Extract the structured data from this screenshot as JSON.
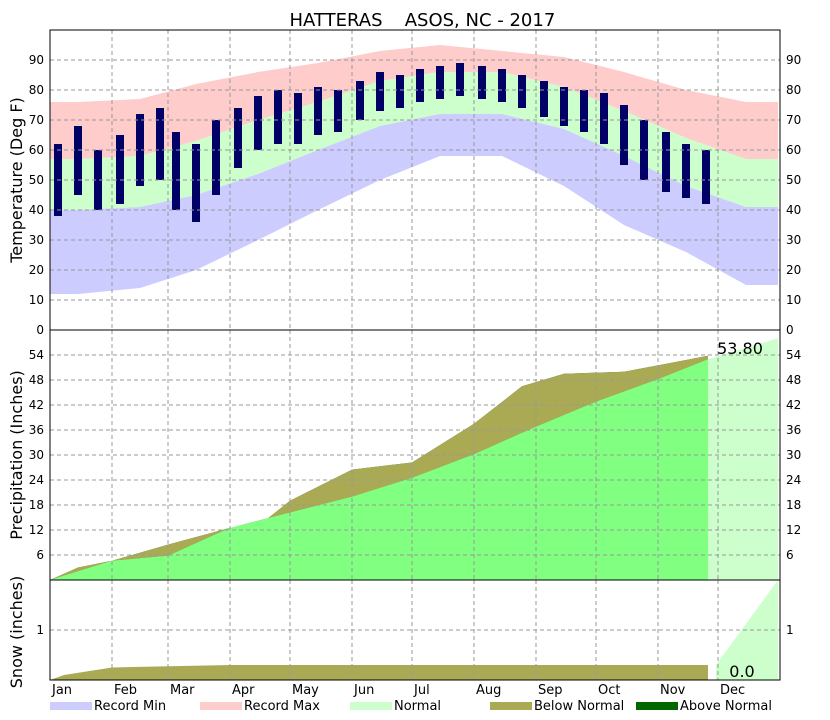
{
  "chart_data": [
    {
      "type": "area",
      "panel": "temperature",
      "title_left": "HATTERAS",
      "title_right": "ASOS, NC - 2017",
      "ylabel": "Temperature (Deg F)",
      "ylim": [
        0,
        100
      ],
      "yticks": [
        "0",
        "10",
        "20",
        "30",
        "40",
        "50",
        "60",
        "70",
        "80",
        "90"
      ],
      "grid": true,
      "x_month_starts": [
        "2017-01-01",
        "2017-02-01",
        "2017-03-01",
        "2017-04-01",
        "2017-05-01",
        "2017-06-01",
        "2017-07-01",
        "2017-08-01",
        "2017-09-01",
        "2017-10-01",
        "2017-11-01",
        "2017-12-01"
      ],
      "normal_high": [
        {
          "date": "2017-01-15",
          "value": 57
        },
        {
          "date": "2017-02-15",
          "value": 58
        },
        {
          "date": "2017-03-15",
          "value": 63
        },
        {
          "date": "2017-04-15",
          "value": 70
        },
        {
          "date": "2017-05-15",
          "value": 76
        },
        {
          "date": "2017-06-15",
          "value": 83
        },
        {
          "date": "2017-07-15",
          "value": 86
        },
        {
          "date": "2017-08-15",
          "value": 86
        },
        {
          "date": "2017-09-15",
          "value": 81
        },
        {
          "date": "2017-10-15",
          "value": 73
        },
        {
          "date": "2017-11-15",
          "value": 64
        },
        {
          "date": "2017-12-15",
          "value": 57
        }
      ],
      "normal_low": [
        {
          "date": "2017-01-15",
          "value": 40
        },
        {
          "date": "2017-02-15",
          "value": 41
        },
        {
          "date": "2017-03-15",
          "value": 45
        },
        {
          "date": "2017-04-15",
          "value": 52
        },
        {
          "date": "2017-05-15",
          "value": 60
        },
        {
          "date": "2017-06-15",
          "value": 68
        },
        {
          "date": "2017-07-15",
          "value": 72
        },
        {
          "date": "2017-08-15",
          "value": 72
        },
        {
          "date": "2017-09-15",
          "value": 67
        },
        {
          "date": "2017-10-15",
          "value": 58
        },
        {
          "date": "2017-11-15",
          "value": 48
        },
        {
          "date": "2017-12-15",
          "value": 41
        }
      ],
      "record_max": [
        {
          "date": "2017-01-15",
          "value": 76
        },
        {
          "date": "2017-02-15",
          "value": 77
        },
        {
          "date": "2017-03-15",
          "value": 82
        },
        {
          "date": "2017-04-15",
          "value": 86
        },
        {
          "date": "2017-05-15",
          "value": 89
        },
        {
          "date": "2017-06-15",
          "value": 93
        },
        {
          "date": "2017-07-15",
          "value": 95
        },
        {
          "date": "2017-08-15",
          "value": 93
        },
        {
          "date": "2017-09-15",
          "value": 91
        },
        {
          "date": "2017-10-15",
          "value": 86
        },
        {
          "date": "2017-11-15",
          "value": 80
        },
        {
          "date": "2017-12-15",
          "value": 76
        }
      ],
      "record_min": [
        {
          "date": "2017-01-15",
          "value": 12
        },
        {
          "date": "2017-02-15",
          "value": 14
        },
        {
          "date": "2017-03-15",
          "value": 20
        },
        {
          "date": "2017-04-15",
          "value": 30
        },
        {
          "date": "2017-05-15",
          "value": 40
        },
        {
          "date": "2017-06-15",
          "value": 50
        },
        {
          "date": "2017-07-15",
          "value": 58
        },
        {
          "date": "2017-08-15",
          "value": 58
        },
        {
          "date": "2017-09-15",
          "value": 48
        },
        {
          "date": "2017-10-15",
          "value": 35
        },
        {
          "date": "2017-11-15",
          "value": 26
        },
        {
          "date": "2017-12-15",
          "value": 15
        }
      ],
      "observed_high": [
        {
          "date": "2017-01-05",
          "value": 62
        },
        {
          "date": "2017-01-15",
          "value": 68
        },
        {
          "date": "2017-01-25",
          "value": 60
        },
        {
          "date": "2017-02-05",
          "value": 65
        },
        {
          "date": "2017-02-15",
          "value": 72
        },
        {
          "date": "2017-02-25",
          "value": 74
        },
        {
          "date": "2017-03-05",
          "value": 66
        },
        {
          "date": "2017-03-15",
          "value": 62
        },
        {
          "date": "2017-03-25",
          "value": 70
        },
        {
          "date": "2017-04-05",
          "value": 74
        },
        {
          "date": "2017-04-15",
          "value": 78
        },
        {
          "date": "2017-04-25",
          "value": 80
        },
        {
          "date": "2017-05-05",
          "value": 79
        },
        {
          "date": "2017-05-15",
          "value": 81
        },
        {
          "date": "2017-05-25",
          "value": 80
        },
        {
          "date": "2017-06-05",
          "value": 83
        },
        {
          "date": "2017-06-15",
          "value": 86
        },
        {
          "date": "2017-06-25",
          "value": 85
        },
        {
          "date": "2017-07-05",
          "value": 87
        },
        {
          "date": "2017-07-15",
          "value": 88
        },
        {
          "date": "2017-07-25",
          "value": 89
        },
        {
          "date": "2017-08-05",
          "value": 88
        },
        {
          "date": "2017-08-15",
          "value": 87
        },
        {
          "date": "2017-08-25",
          "value": 85
        },
        {
          "date": "2017-09-05",
          "value": 83
        },
        {
          "date": "2017-09-15",
          "value": 81
        },
        {
          "date": "2017-09-25",
          "value": 80
        },
        {
          "date": "2017-10-05",
          "value": 79
        },
        {
          "date": "2017-10-15",
          "value": 75
        },
        {
          "date": "2017-10-25",
          "value": 70
        },
        {
          "date": "2017-11-05",
          "value": 66
        },
        {
          "date": "2017-11-15",
          "value": 62
        },
        {
          "date": "2017-11-25",
          "value": 60
        }
      ],
      "observed_low": [
        {
          "date": "2017-01-05",
          "value": 38
        },
        {
          "date": "2017-01-15",
          "value": 45
        },
        {
          "date": "2017-01-25",
          "value": 40
        },
        {
          "date": "2017-02-05",
          "value": 42
        },
        {
          "date": "2017-02-15",
          "value": 48
        },
        {
          "date": "2017-02-25",
          "value": 50
        },
        {
          "date": "2017-03-05",
          "value": 40
        },
        {
          "date": "2017-03-15",
          "value": 36
        },
        {
          "date": "2017-03-25",
          "value": 45
        },
        {
          "date": "2017-04-05",
          "value": 54
        },
        {
          "date": "2017-04-15",
          "value": 60
        },
        {
          "date": "2017-04-25",
          "value": 62
        },
        {
          "date": "2017-05-05",
          "value": 62
        },
        {
          "date": "2017-05-15",
          "value": 65
        },
        {
          "date": "2017-05-25",
          "value": 66
        },
        {
          "date": "2017-06-05",
          "value": 70
        },
        {
          "date": "2017-06-15",
          "value": 73
        },
        {
          "date": "2017-06-25",
          "value": 74
        },
        {
          "date": "2017-07-05",
          "value": 76
        },
        {
          "date": "2017-07-15",
          "value": 77
        },
        {
          "date": "2017-07-25",
          "value": 78
        },
        {
          "date": "2017-08-05",
          "value": 77
        },
        {
          "date": "2017-08-15",
          "value": 76
        },
        {
          "date": "2017-08-25",
          "value": 74
        },
        {
          "date": "2017-09-05",
          "value": 71
        },
        {
          "date": "2017-09-15",
          "value": 68
        },
        {
          "date": "2017-09-25",
          "value": 66
        },
        {
          "date": "2017-10-05",
          "value": 62
        },
        {
          "date": "2017-10-15",
          "value": 55
        },
        {
          "date": "2017-10-25",
          "value": 50
        },
        {
          "date": "2017-11-05",
          "value": 46
        },
        {
          "date": "2017-11-15",
          "value": 44
        },
        {
          "date": "2017-11-25",
          "value": 42
        }
      ],
      "colors": {
        "record_min": "#ccccff",
        "record_max": "#ffcccc",
        "normal": "#ccffcc",
        "observed": "#000066"
      }
    },
    {
      "type": "area",
      "panel": "precipitation",
      "ylabel": "Precipitation (Inches)",
      "ylim": [
        0,
        60
      ],
      "yticks": [
        "6",
        "12",
        "18",
        "24",
        "30",
        "36",
        "42",
        "48",
        "54"
      ],
      "grid": true,
      "annotation": "53.80",
      "normal_cumulative": [
        {
          "date": "2017-01-01",
          "value": 0
        },
        {
          "date": "2017-02-01",
          "value": 4.6
        },
        {
          "date": "2017-03-01",
          "value": 8.5
        },
        {
          "date": "2017-04-01",
          "value": 12.5
        },
        {
          "date": "2017-05-01",
          "value": 16.2
        },
        {
          "date": "2017-06-01",
          "value": 20.0
        },
        {
          "date": "2017-07-01",
          "value": 24.5
        },
        {
          "date": "2017-08-01",
          "value": 30.2
        },
        {
          "date": "2017-09-01",
          "value": 36.8
        },
        {
          "date": "2017-10-01",
          "value": 42.8
        },
        {
          "date": "2017-11-01",
          "value": 48.2
        },
        {
          "date": "2017-11-26",
          "value": 53.0
        },
        {
          "date": "2017-12-31",
          "value": 58.0
        }
      ],
      "observed_cumulative": [
        {
          "date": "2017-01-01",
          "value": 0
        },
        {
          "date": "2017-01-15",
          "value": 3.0
        },
        {
          "date": "2017-02-01",
          "value": 4.6
        },
        {
          "date": "2017-02-15",
          "value": 5.2
        },
        {
          "date": "2017-03-01",
          "value": 5.8
        },
        {
          "date": "2017-04-01",
          "value": 12.5
        },
        {
          "date": "2017-04-20",
          "value": 14.8
        },
        {
          "date": "2017-05-01",
          "value": 19.0
        },
        {
          "date": "2017-06-01",
          "value": 26.5
        },
        {
          "date": "2017-07-01",
          "value": 28.2
        },
        {
          "date": "2017-08-01",
          "value": 37.5
        },
        {
          "date": "2017-08-25",
          "value": 46.5
        },
        {
          "date": "2017-09-15",
          "value": 49.5
        },
        {
          "date": "2017-10-15",
          "value": 50.0
        },
        {
          "date": "2017-11-01",
          "value": 51.5
        },
        {
          "date": "2017-11-26",
          "value": 53.8
        }
      ],
      "colors": {
        "normal": "#ccffcc",
        "normal_to_date": "#80ff80",
        "below_normal": "#aaaa55",
        "above_normal": "#006600"
      }
    },
    {
      "type": "area",
      "panel": "snow",
      "ylabel": "Snow (inches)",
      "ylim": [
        0,
        2
      ],
      "yticks": [
        "1"
      ],
      "grid": true,
      "annotation": "0.0",
      "normal_cumulative": [
        {
          "date": "2017-01-01",
          "value": 0
        },
        {
          "date": "2017-01-08",
          "value": 0.1
        },
        {
          "date": "2017-02-01",
          "value": 0.25
        },
        {
          "date": "2017-04-01",
          "value": 0.3
        },
        {
          "date": "2017-11-30",
          "value": 0.3
        },
        {
          "date": "2017-12-31",
          "value": 2.0
        }
      ],
      "observed_cumulative": [
        {
          "date": "2017-01-01",
          "value": 0
        },
        {
          "date": "2017-11-26",
          "value": 0
        }
      ],
      "colors": {
        "normal": "#ccffcc",
        "below_normal": "#aaaa55"
      }
    }
  ],
  "x_tick_labels": [
    "Jan",
    "Feb",
    "Mar",
    "Apr",
    "May",
    "Jun",
    "Jul",
    "Aug",
    "Sep",
    "Oct",
    "Nov",
    "Dec"
  ],
  "legend": [
    {
      "label": "Record Min",
      "color": "#ccccff"
    },
    {
      "label": "Record Max",
      "color": "#ffcccc"
    },
    {
      "label": "Normal",
      "color": "#ccffcc"
    },
    {
      "label": "Below Normal",
      "color": "#aaaa55"
    },
    {
      "label": "Above Normal",
      "color": "#006600"
    }
  ],
  "legend_placement": "bottom"
}
